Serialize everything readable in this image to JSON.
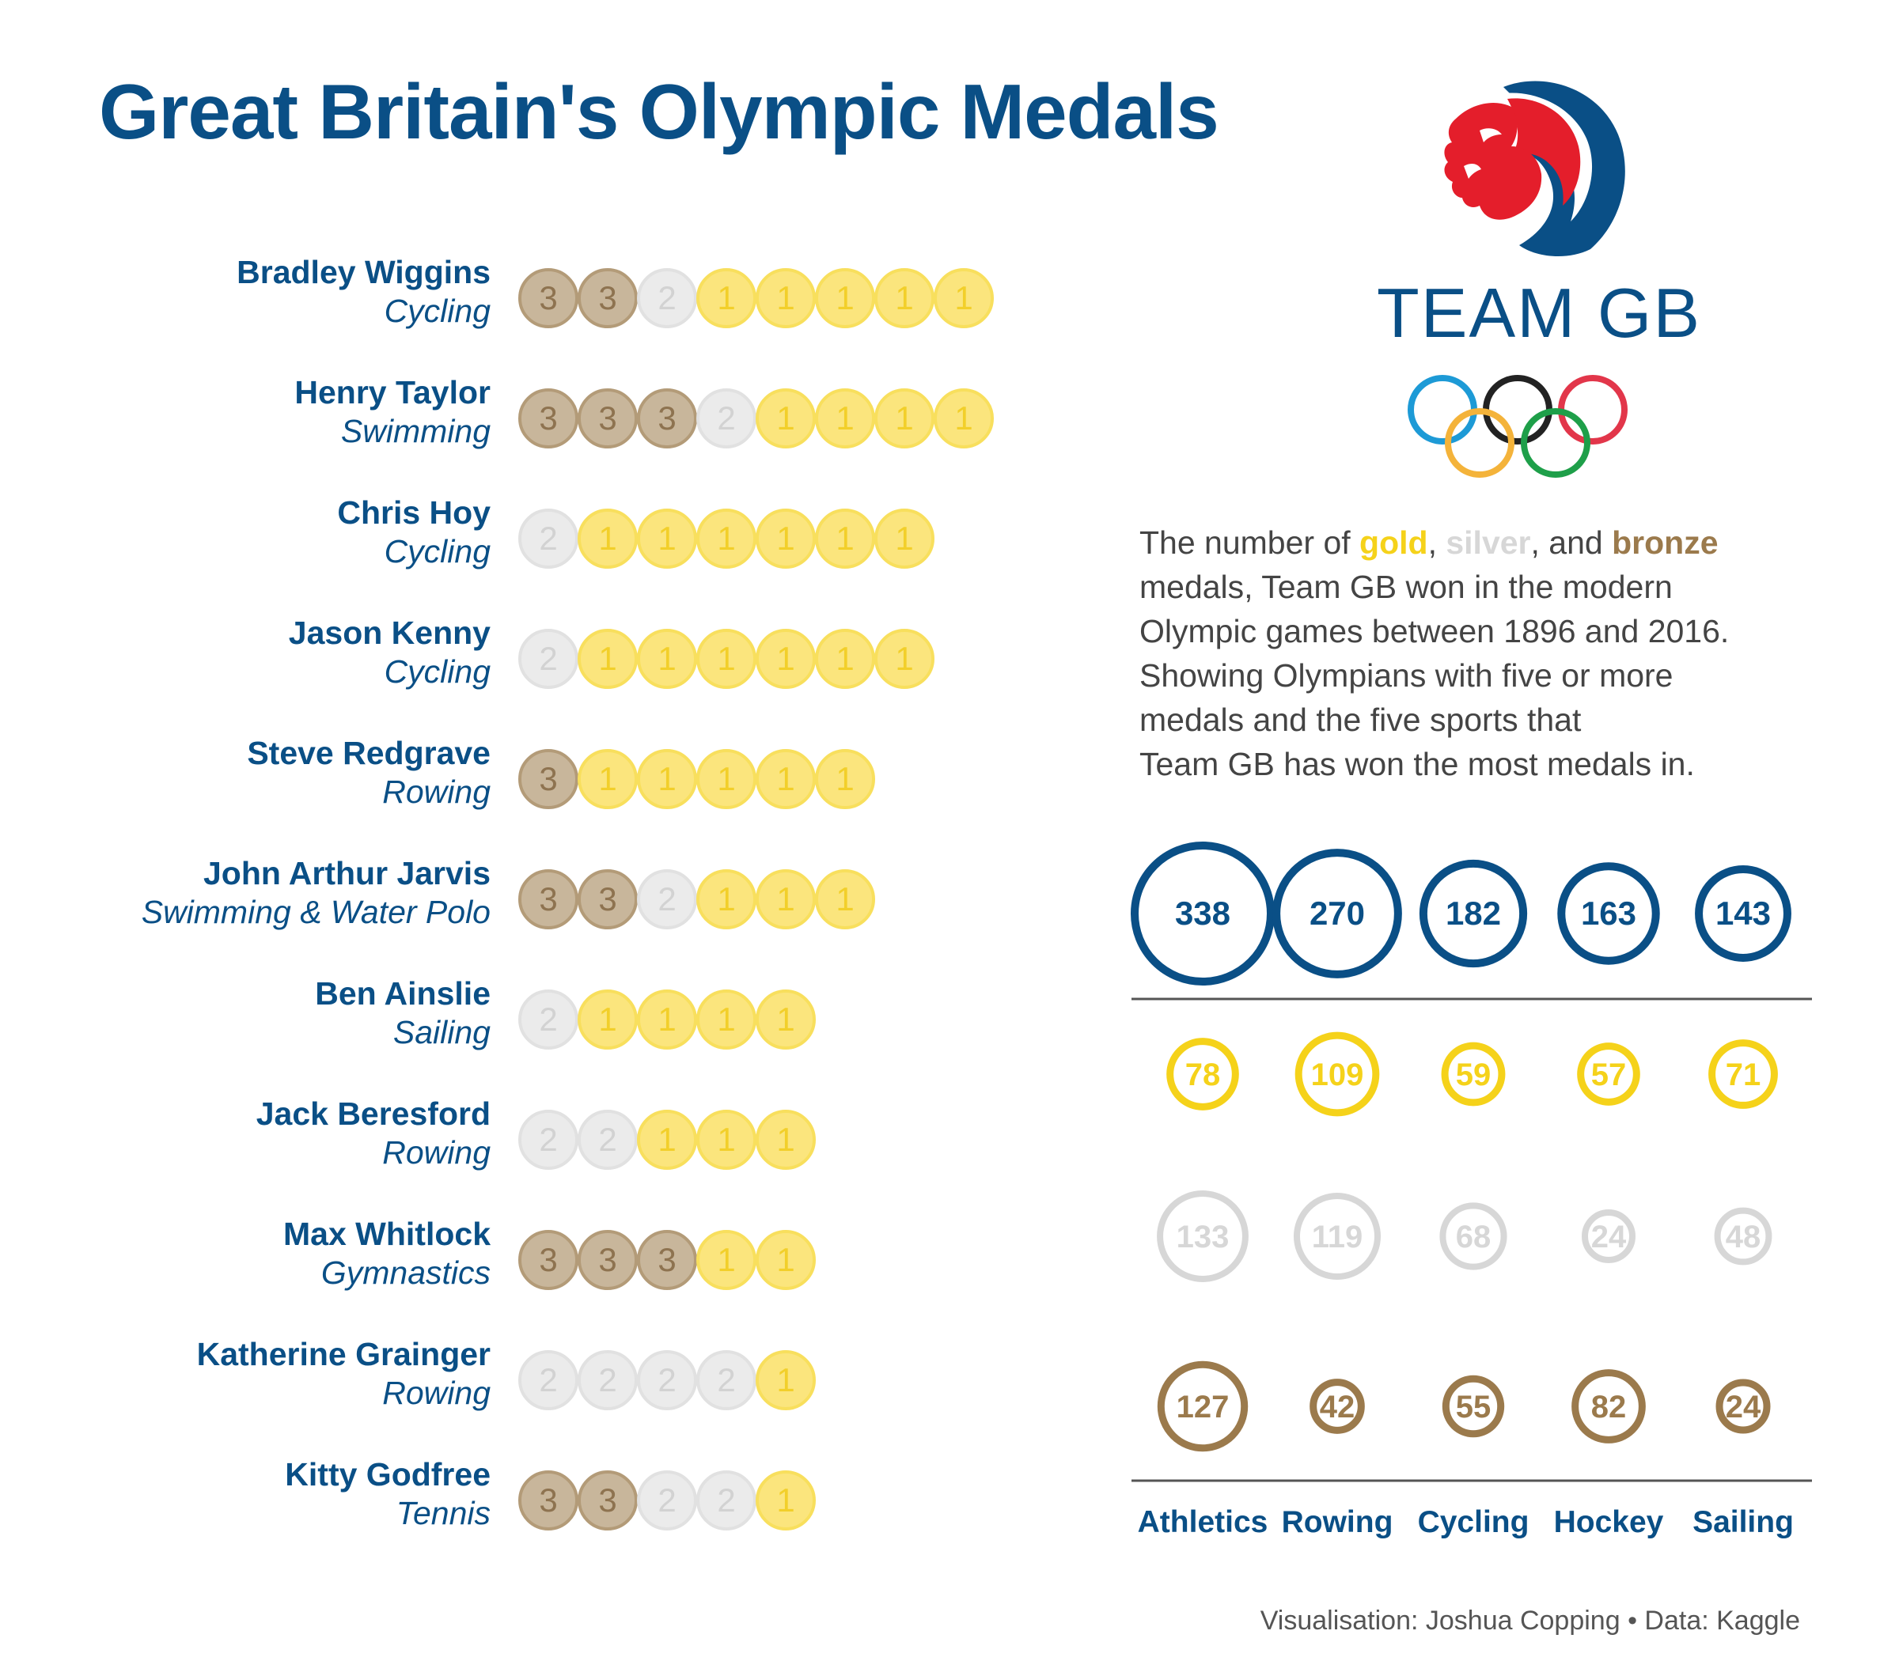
{
  "title": "Great Britain's Olympic Medals",
  "logo": {
    "text": "TEAM GB"
  },
  "description": {
    "part1": "The number of ",
    "gold": "gold",
    "sep1": ", ",
    "silver": "silver",
    "sep2": ", and ",
    "bronze": "bronze",
    "line1_end": "",
    "line2": "medals, Team GB won in the modern",
    "line3": "Olympic games between 1896 and 2016.",
    "line4": "Showing Olympians with five or more",
    "line5": "medals and the five sports that",
    "line6": "Team GB has won the most medals in."
  },
  "colors": {
    "navy": "#0a4f86",
    "gold": "#f5d21a",
    "silver": "#d7d7d7",
    "bronze": "#9b7a4c"
  },
  "chart_data": [
    {
      "type": "table",
      "title": "",
      "athletes": [
        {
          "name": "Bradley Wiggins",
          "sport": "Cycling",
          "medals": [
            3,
            3,
            2,
            1,
            1,
            1,
            1,
            1
          ]
        },
        {
          "name": "Henry Taylor",
          "sport": "Swimming",
          "medals": [
            3,
            3,
            3,
            2,
            1,
            1,
            1,
            1
          ]
        },
        {
          "name": "Chris Hoy",
          "sport": "Cycling",
          "medals": [
            2,
            1,
            1,
            1,
            1,
            1,
            1
          ]
        },
        {
          "name": "Jason Kenny",
          "sport": "Cycling",
          "medals": [
            2,
            1,
            1,
            1,
            1,
            1,
            1
          ]
        },
        {
          "name": "Steve Redgrave",
          "sport": "Rowing",
          "medals": [
            3,
            1,
            1,
            1,
            1,
            1
          ]
        },
        {
          "name": "John Arthur Jarvis",
          "sport": "Swimming & Water Polo",
          "medals": [
            3,
            3,
            2,
            1,
            1,
            1
          ]
        },
        {
          "name": "Ben Ainslie",
          "sport": "Sailing",
          "medals": [
            2,
            1,
            1,
            1,
            1
          ]
        },
        {
          "name": "Jack Beresford",
          "sport": "Rowing",
          "medals": [
            2,
            2,
            1,
            1,
            1
          ]
        },
        {
          "name": "Max Whitlock",
          "sport": "Gymnastics",
          "medals": [
            3,
            3,
            3,
            1,
            1
          ]
        },
        {
          "name": "Katherine Grainger",
          "sport": "Rowing",
          "medals": [
            2,
            2,
            2,
            2,
            1
          ]
        },
        {
          "name": "Kitty Godfree",
          "sport": "Tennis",
          "medals": [
            3,
            3,
            2,
            2,
            1
          ]
        }
      ]
    },
    {
      "type": "scatter",
      "title": "",
      "categories": [
        "Athletics",
        "Rowing",
        "Cycling",
        "Hockey",
        "Sailing"
      ],
      "series": [
        {
          "key": "total",
          "values": [
            338,
            270,
            182,
            163,
            143
          ]
        },
        {
          "key": "gold",
          "values": [
            78,
            109,
            59,
            57,
            71
          ]
        },
        {
          "key": "silver",
          "values": [
            133,
            119,
            68,
            24,
            48
          ]
        },
        {
          "key": "bronze",
          "values": [
            127,
            42,
            55,
            82,
            24
          ]
        }
      ]
    }
  ],
  "footer": "Visualisation: Joshua Copping • Data: Kaggle"
}
